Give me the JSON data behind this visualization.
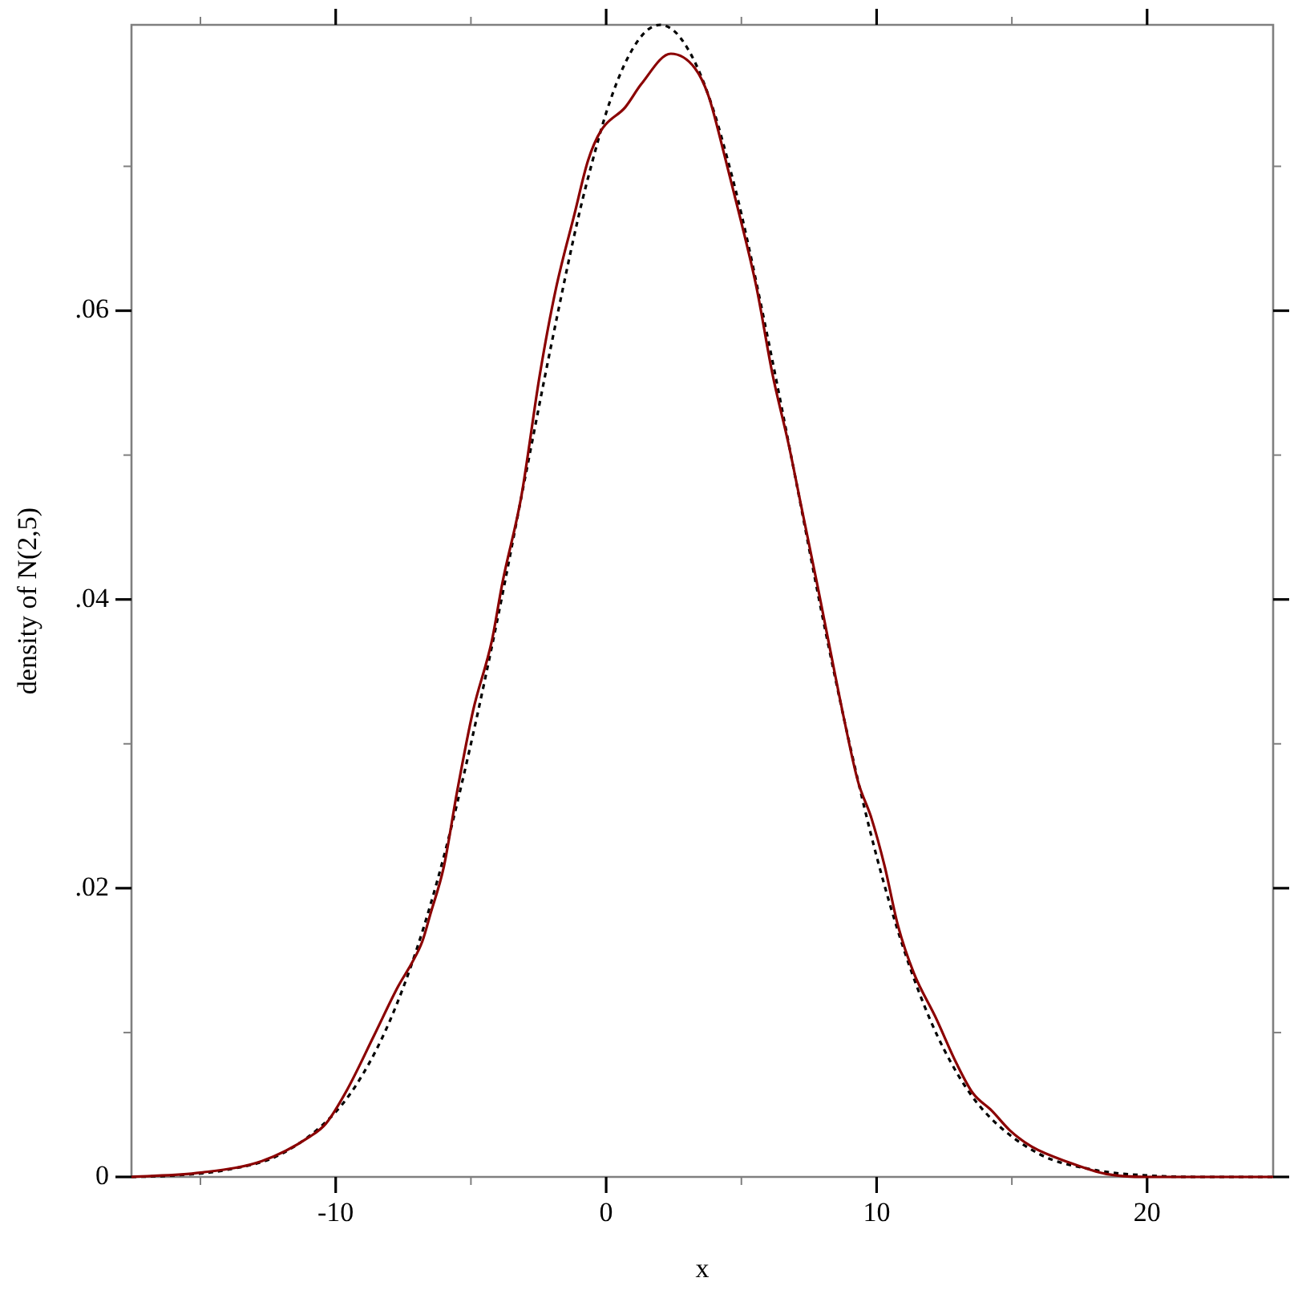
{
  "chart_data": {
    "type": "line",
    "xlabel": "x",
    "ylabel": "density of N(2,5)",
    "xlim": [
      -17.55,
      24.66
    ],
    "ylim": [
      0,
      0.0798
    ],
    "xticks": [
      {
        "value": -15,
        "label": null
      },
      -10,
      {
        "value": -5,
        "label": null
      },
      0,
      {
        "value": 5,
        "label": null
      },
      10,
      {
        "value": 15,
        "label": null
      },
      20
    ],
    "yticks": [
      0,
      {
        "value": 0.01,
        "label": null
      },
      {
        "value": 0.02,
        "label": ".02"
      },
      {
        "value": 0.03,
        "label": null
      },
      {
        "value": 0.04,
        "label": ".04"
      },
      {
        "value": 0.05,
        "label": null
      },
      {
        "value": 0.06,
        "label": ".06"
      },
      {
        "value": 0.07,
        "label": null
      }
    ],
    "marker": "none",
    "series": [
      {
        "color": "#000000",
        "line_style": "dashed",
        "x": [
          -17.55,
          -16,
          -14,
          -12,
          -10,
          -9,
          -8,
          -7,
          -6,
          -5,
          -4,
          -3,
          -2,
          -1,
          -0.5,
          0,
          0.5,
          1,
          1.5,
          2,
          2.5,
          3,
          3.5,
          4,
          4.5,
          5,
          6,
          7,
          8,
          9,
          10,
          11,
          12,
          13,
          14,
          16,
          18,
          20,
          22,
          24.66
        ],
        "values": [
          0.0,
          0.0001,
          0.0005,
          0.0016,
          0.0045,
          0.0071,
          0.0108,
          0.0158,
          0.0222,
          0.03,
          0.0388,
          0.0484,
          0.0579,
          0.0667,
          0.0704,
          0.0737,
          0.0763,
          0.0782,
          0.0794,
          0.0798,
          0.0794,
          0.0782,
          0.0763,
          0.0737,
          0.0704,
          0.0667,
          0.0579,
          0.0484,
          0.0388,
          0.03,
          0.0222,
          0.0158,
          0.0108,
          0.0071,
          0.0045,
          0.0016,
          0.0005,
          0.0001,
          0.0,
          0.0
        ]
      },
      {
        "color": "#8b0000",
        "line_style": "solid",
        "x": [
          -17.55,
          -15,
          -12.73,
          -10.95,
          -10.36,
          -9.56,
          -8.58,
          -7.69,
          -7.19,
          -6.8,
          -6.5,
          -6.0,
          -5.51,
          -4.92,
          -4.23,
          -3.83,
          -3.14,
          -2.45,
          -1.86,
          -1.17,
          -0.67,
          -0.18,
          0.71,
          1.3,
          2.39,
          3.28,
          3.78,
          4.37,
          4.96,
          5.56,
          6.15,
          6.74,
          7.23,
          7.83,
          8.22,
          8.82,
          9.31,
          9.8,
          10.3,
          10.79,
          11.38,
          12.17,
          12.97,
          13.56,
          14.25,
          14.94,
          15.73,
          17.12,
          18.5,
          19.98,
          22.25,
          24.66
        ],
        "values": [
          0.0,
          0.0003,
          0.0011,
          0.0028,
          0.0037,
          0.0061,
          0.0098,
          0.0132,
          0.0148,
          0.0163,
          0.0182,
          0.0215,
          0.0267,
          0.0323,
          0.0371,
          0.0412,
          0.0471,
          0.0556,
          0.0615,
          0.0667,
          0.0704,
          0.0725,
          0.0741,
          0.0757,
          0.0778,
          0.0768,
          0.0749,
          0.0708,
          0.0664,
          0.0616,
          0.0556,
          0.0508,
          0.0463,
          0.0408,
          0.0371,
          0.0315,
          0.0274,
          0.0249,
          0.0215,
          0.0174,
          0.0141,
          0.0111,
          0.0078,
          0.0058,
          0.0046,
          0.0032,
          0.0021,
          0.001,
          0.0002,
          0.0,
          0.0,
          0.0
        ]
      }
    ]
  }
}
